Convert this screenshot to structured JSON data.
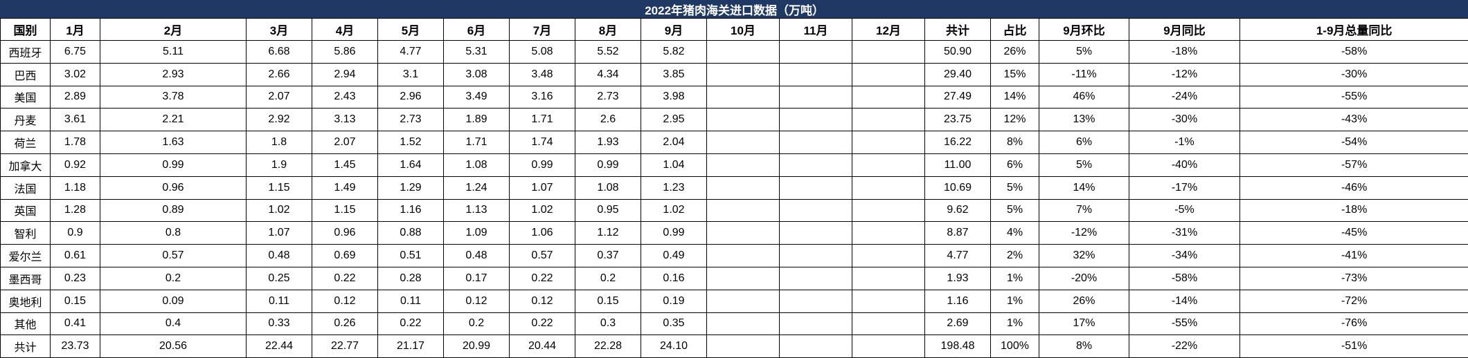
{
  "title": "2022年猪肉海关进口数据（万吨）",
  "colors": {
    "title_bg": "#1f3864",
    "title_text": "#ffffff",
    "border": "#000000",
    "cell_bg": "#ffffff",
    "cell_text": "#000000"
  },
  "table": {
    "headers": [
      "国别",
      "1月",
      "2月",
      "3月",
      "4月",
      "5月",
      "6月",
      "7月",
      "8月",
      "9月",
      "10月",
      "11月",
      "12月",
      "共计",
      "占比",
      "9月环比",
      "9月同比",
      "1-9月总量同比"
    ],
    "rows": [
      [
        "西班牙",
        "6.75",
        "5.11",
        "6.68",
        "5.86",
        "4.77",
        "5.31",
        "5.08",
        "5.52",
        "5.82",
        "",
        "",
        "",
        "50.90",
        "26%",
        "5%",
        "-18%",
        "-58%"
      ],
      [
        "巴西",
        "3.02",
        "2.93",
        "2.66",
        "2.94",
        "3.1",
        "3.08",
        "3.48",
        "4.34",
        "3.85",
        "",
        "",
        "",
        "29.40",
        "15%",
        "-11%",
        "-12%",
        "-30%"
      ],
      [
        "美国",
        "2.89",
        "3.78",
        "2.07",
        "2.43",
        "2.96",
        "3.49",
        "3.16",
        "2.73",
        "3.98",
        "",
        "",
        "",
        "27.49",
        "14%",
        "46%",
        "-24%",
        "-55%"
      ],
      [
        "丹麦",
        "3.61",
        "2.21",
        "2.92",
        "3.13",
        "2.73",
        "1.89",
        "1.71",
        "2.6",
        "2.95",
        "",
        "",
        "",
        "23.75",
        "12%",
        "13%",
        "-30%",
        "-43%"
      ],
      [
        "荷兰",
        "1.78",
        "1.63",
        "1.8",
        "2.07",
        "1.52",
        "1.71",
        "1.74",
        "1.93",
        "2.04",
        "",
        "",
        "",
        "16.22",
        "8%",
        "6%",
        "-1%",
        "-54%"
      ],
      [
        "加拿大",
        "0.92",
        "0.99",
        "1.9",
        "1.45",
        "1.64",
        "1.08",
        "0.99",
        "0.99",
        "1.04",
        "",
        "",
        "",
        "11.00",
        "6%",
        "5%",
        "-40%",
        "-57%"
      ],
      [
        "法国",
        "1.18",
        "0.96",
        "1.15",
        "1.49",
        "1.29",
        "1.24",
        "1.07",
        "1.08",
        "1.23",
        "",
        "",
        "",
        "10.69",
        "5%",
        "14%",
        "-17%",
        "-46%"
      ],
      [
        "英国",
        "1.28",
        "0.89",
        "1.02",
        "1.15",
        "1.16",
        "1.13",
        "1.02",
        "0.95",
        "1.02",
        "",
        "",
        "",
        "9.62",
        "5%",
        "7%",
        "-5%",
        "-18%"
      ],
      [
        "智利",
        "0.9",
        "0.8",
        "1.07",
        "0.96",
        "0.88",
        "1.09",
        "1.06",
        "1.12",
        "0.99",
        "",
        "",
        "",
        "8.87",
        "4%",
        "-12%",
        "-31%",
        "-45%"
      ],
      [
        "爱尔兰",
        "0.61",
        "0.57",
        "0.48",
        "0.69",
        "0.51",
        "0.48",
        "0.57",
        "0.37",
        "0.49",
        "",
        "",
        "",
        "4.77",
        "2%",
        "32%",
        "-34%",
        "-41%"
      ],
      [
        "墨西哥",
        "0.23",
        "0.2",
        "0.25",
        "0.22",
        "0.28",
        "0.17",
        "0.22",
        "0.2",
        "0.16",
        "",
        "",
        "",
        "1.93",
        "1%",
        "-20%",
        "-58%",
        "-73%"
      ],
      [
        "奥地利",
        "0.15",
        "0.09",
        "0.11",
        "0.12",
        "0.11",
        "0.12",
        "0.12",
        "0.15",
        "0.19",
        "",
        "",
        "",
        "1.16",
        "1%",
        "26%",
        "-14%",
        "-72%"
      ],
      [
        "其他",
        "0.41",
        "0.4",
        "0.33",
        "0.26",
        "0.22",
        "0.2",
        "0.22",
        "0.3",
        "0.35",
        "",
        "",
        "",
        "2.69",
        "1%",
        "17%",
        "-55%",
        "-76%"
      ],
      [
        "共计",
        "23.73",
        "20.56",
        "22.44",
        "22.77",
        "21.17",
        "20.99",
        "20.44",
        "22.28",
        "24.10",
        "",
        "",
        "",
        "198.48",
        "100%",
        "8%",
        "-22%",
        "-51%"
      ]
    ]
  }
}
